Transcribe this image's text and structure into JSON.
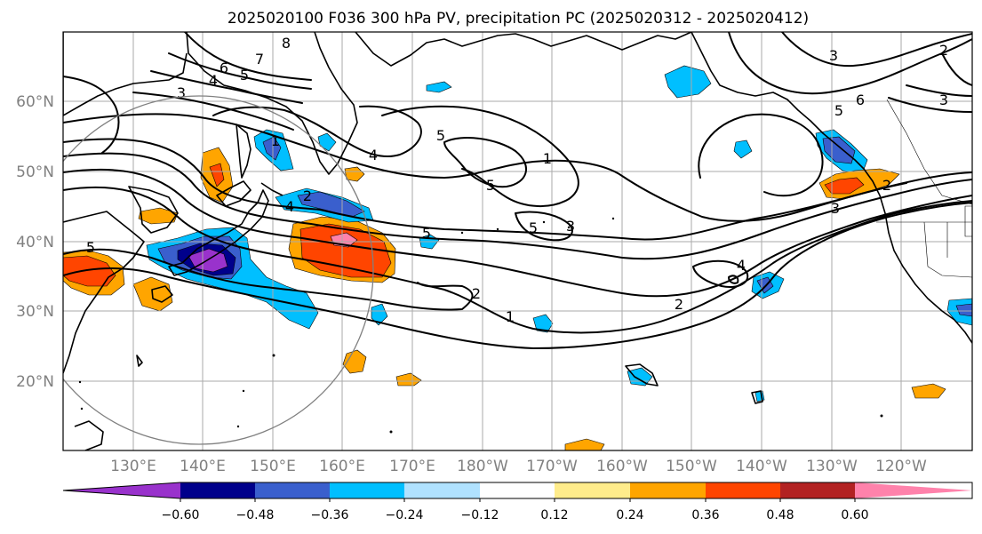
{
  "title": "2025020100 F036 300 hPa PV, precipitation PC (2025020312 - 2025020412)",
  "lat_labels": [
    "60°N",
    "50°N",
    "40°N",
    "30°N",
    "20°N"
  ],
  "lon_labels": [
    "130°E",
    "140°E",
    "150°E",
    "160°E",
    "170°E",
    "180°W",
    "170°W",
    "160°W",
    "150°W",
    "140°W",
    "130°W",
    "120°W"
  ],
  "colorbar": {
    "tick_labels": [
      "−0.60",
      "−0.48",
      "−0.36",
      "−0.24",
      "−0.12",
      "0.12",
      "0.24",
      "0.36",
      "0.48",
      "0.60"
    ],
    "colors": [
      "#9932cc",
      "#00008b",
      "#3a5fcd",
      "#00bfff",
      "#b0e2ff",
      "#ffffff",
      "#ffec8b",
      "#ffa500",
      "#ff4500",
      "#b22222",
      "#ff82ab"
    ]
  },
  "contour_labels": [
    "8",
    "7",
    "6",
    "5",
    "4",
    "3",
    "1",
    "5",
    "5",
    "5",
    "5",
    "3",
    "2",
    "2",
    "4",
    "2",
    "1",
    "4",
    "5",
    "6",
    "3",
    "2",
    "2",
    "3",
    "1",
    "3",
    "5",
    "4"
  ]
}
